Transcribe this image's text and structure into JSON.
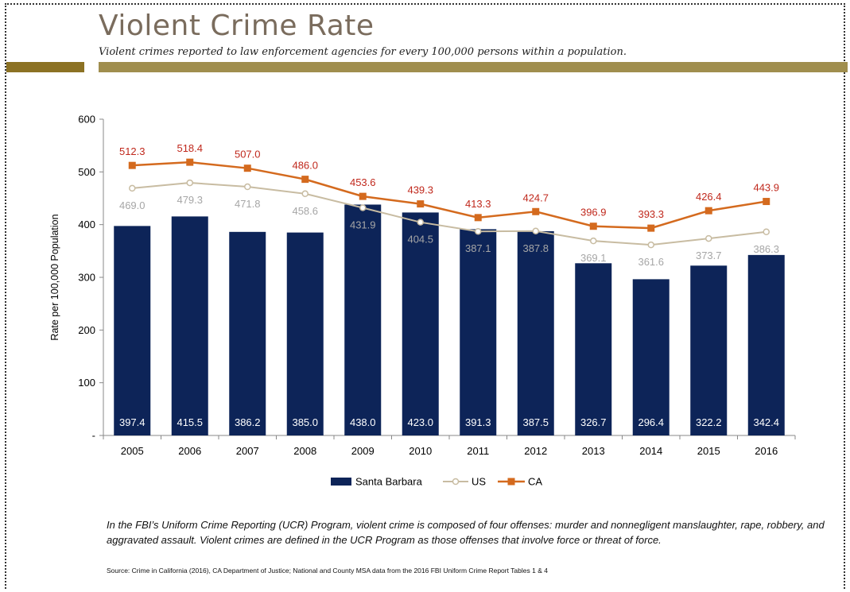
{
  "header": {
    "title": "Violent Crime Rate",
    "subtitle": "Violent crimes reported to law enforcement agencies for every 100,000 persons within a population."
  },
  "colors": {
    "santa_barbara": "#0d2458",
    "us": "#c8bca2",
    "ca": "#d46a1e",
    "ca_labels": "#c0281c",
    "us_labels": "#a6a6a6",
    "title": "#7a6c5d",
    "rule": "#a08e4e"
  },
  "chart_data": {
    "type": "bar",
    "categories": [
      "2005",
      "2006",
      "2007",
      "2008",
      "2009",
      "2010",
      "2011",
      "2012",
      "2013",
      "2014",
      "2015",
      "2016"
    ],
    "ylabel": "Rate per 100,000 Population",
    "ylim": [
      0,
      600
    ],
    "yticks": [
      0,
      100,
      200,
      300,
      400,
      500,
      600
    ],
    "ytick_labels": [
      "-",
      "100",
      "200",
      "300",
      "400",
      "500",
      "600"
    ],
    "grid": false,
    "legend_position": "bottom",
    "series": [
      {
        "name": "Santa Barbara",
        "type": "bar",
        "values": [
          397.4,
          415.5,
          386.2,
          385.0,
          438.0,
          423.0,
          391.3,
          387.5,
          326.7,
          296.4,
          322.2,
          342.4
        ]
      },
      {
        "name": "US",
        "type": "line",
        "marker": "circle",
        "values": [
          469.0,
          479.3,
          471.8,
          458.6,
          431.9,
          404.5,
          387.1,
          387.8,
          369.1,
          361.6,
          373.7,
          386.3
        ]
      },
      {
        "name": "CA",
        "type": "line",
        "marker": "square",
        "values": [
          512.3,
          518.4,
          507.0,
          486.0,
          453.6,
          439.3,
          413.3,
          424.7,
          396.9,
          393.3,
          426.4,
          443.9
        ]
      }
    ]
  },
  "footnote": "In the FBI’s Uniform Crime Reporting (UCR) Program, violent crime is composed of four offenses: murder and nonnegligent manslaughter, rape, robbery, and aggravated assault. Violent crimes are defined in the UCR Program as those offenses that involve force or threat of force.",
  "source": "Source: Crime in California (2016), CA Department of Justice; National and County MSA data from the 2016 FBI Uniform Crime Report Tables 1 & 4"
}
